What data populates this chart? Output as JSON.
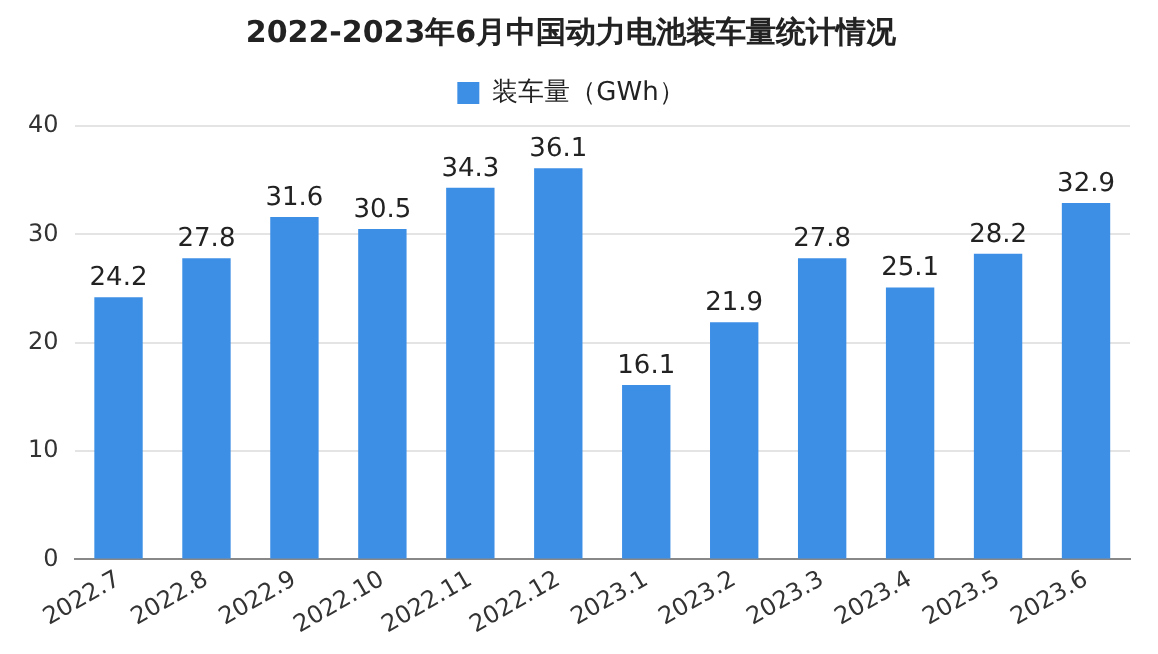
{
  "chart_data": {
    "type": "bar",
    "title": "2022-2023年6月中国动力电池装车量统计情况",
    "categories": [
      "2022.7",
      "2022.8",
      "2022.9",
      "2022.10",
      "2022.11",
      "2022.12",
      "2023.1",
      "2023.2",
      "2023.3",
      "2023.4",
      "2023.5",
      "2023.6"
    ],
    "series": [
      {
        "name": "装车量（GWh）",
        "color": "#3d8fe6",
        "values": [
          24.2,
          27.8,
          31.6,
          30.5,
          34.3,
          36.1,
          16.1,
          21.9,
          27.8,
          25.1,
          28.2,
          32.9
        ]
      }
    ],
    "ylim": [
      0,
      40
    ],
    "yticks": [
      0,
      10,
      20,
      30,
      40
    ],
    "grid": "y",
    "legend": "top",
    "data_labels": true
  }
}
